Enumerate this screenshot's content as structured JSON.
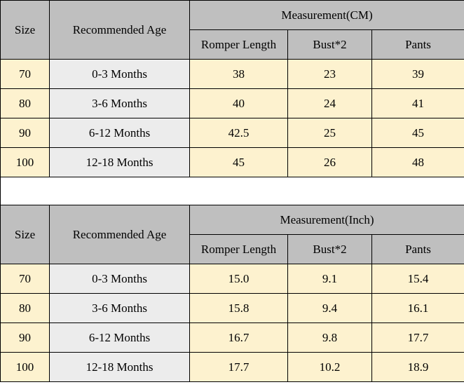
{
  "colors": {
    "header_bg": "#bfbfbf",
    "cream_bg": "#fdf2cf",
    "gray_bg": "#ececec",
    "border": "#000000",
    "text": "#000000"
  },
  "typography": {
    "font_family": "Times New Roman",
    "font_size_pt": 13
  },
  "table_cm": {
    "type": "table",
    "size_label": "Size",
    "age_label": "Recommended Age",
    "measure_group_label": "Measurement(CM)",
    "columns": [
      "Romper Length",
      "Bust*2",
      "Pants"
    ],
    "rows": [
      {
        "size": "70",
        "age": "0-3 Months",
        "v": [
          "38",
          "23",
          "39"
        ]
      },
      {
        "size": "80",
        "age": "3-6 Months",
        "v": [
          "40",
          "24",
          "41"
        ]
      },
      {
        "size": "90",
        "age": "6-12 Months",
        "v": [
          "42.5",
          "25",
          "45"
        ]
      },
      {
        "size": "100",
        "age": "12-18 Months",
        "v": [
          "45",
          "26",
          "48"
        ]
      }
    ]
  },
  "table_inch": {
    "type": "table",
    "size_label": "Size",
    "age_label": "Recommended Age",
    "measure_group_label": "Measurement(Inch)",
    "columns": [
      "Romper Length",
      "Bust*2",
      "Pants"
    ],
    "rows": [
      {
        "size": "70",
        "age": "0-3 Months",
        "v": [
          "15.0",
          "9.1",
          "15.4"
        ]
      },
      {
        "size": "80",
        "age": "3-6 Months",
        "v": [
          "15.8",
          "9.4",
          "16.1"
        ]
      },
      {
        "size": "90",
        "age": "6-12 Months",
        "v": [
          "16.7",
          "9.8",
          "17.7"
        ]
      },
      {
        "size": "100",
        "age": "12-18 Months",
        "v": [
          "17.7",
          "10.2",
          "18.9"
        ]
      }
    ]
  }
}
